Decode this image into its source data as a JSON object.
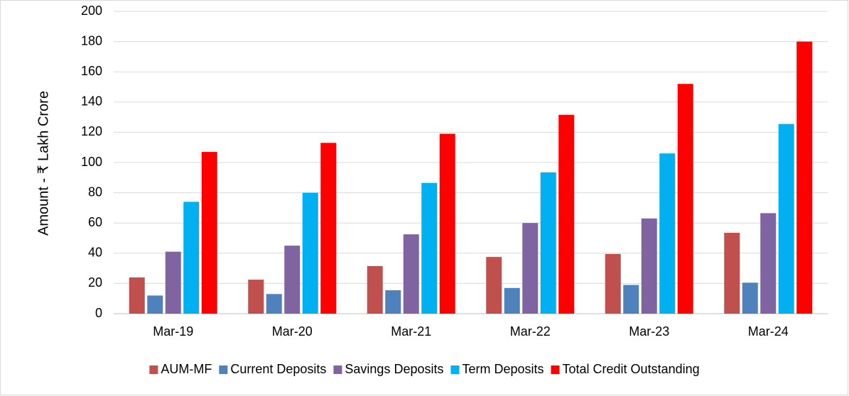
{
  "chart_data": {
    "type": "bar",
    "y_label": "Amount - ₹ Lakh Crore",
    "categories": [
      "Mar-19",
      "Mar-20",
      "Mar-21",
      "Mar-22",
      "Mar-23",
      "Mar-24"
    ],
    "series": [
      {
        "name": "AUM-MF",
        "color": "#c0504d",
        "values": [
          24,
          22.5,
          31.5,
          37.5,
          39.5,
          53.5
        ]
      },
      {
        "name": "Current Deposits",
        "color": "#4f81bd",
        "values": [
          12,
          13,
          15.5,
          17,
          19,
          20.5
        ]
      },
      {
        "name": "Savings Deposits",
        "color": "#8064a2",
        "values": [
          41,
          45,
          52.5,
          60,
          63,
          66.5
        ]
      },
      {
        "name": "Term Deposits",
        "color": "#00b0f0",
        "values": [
          74,
          80,
          86.5,
          93.5,
          106,
          125.5
        ]
      },
      {
        "name": "Total Credit Outstanding",
        "color": "#ff0000",
        "values": [
          107,
          113,
          119,
          131.5,
          152,
          180
        ]
      }
    ],
    "ylim": [
      0,
      200
    ],
    "yticks": [
      0,
      20,
      40,
      60,
      80,
      100,
      120,
      140,
      160,
      180,
      200
    ],
    "grid": true,
    "legend": "bottom"
  }
}
